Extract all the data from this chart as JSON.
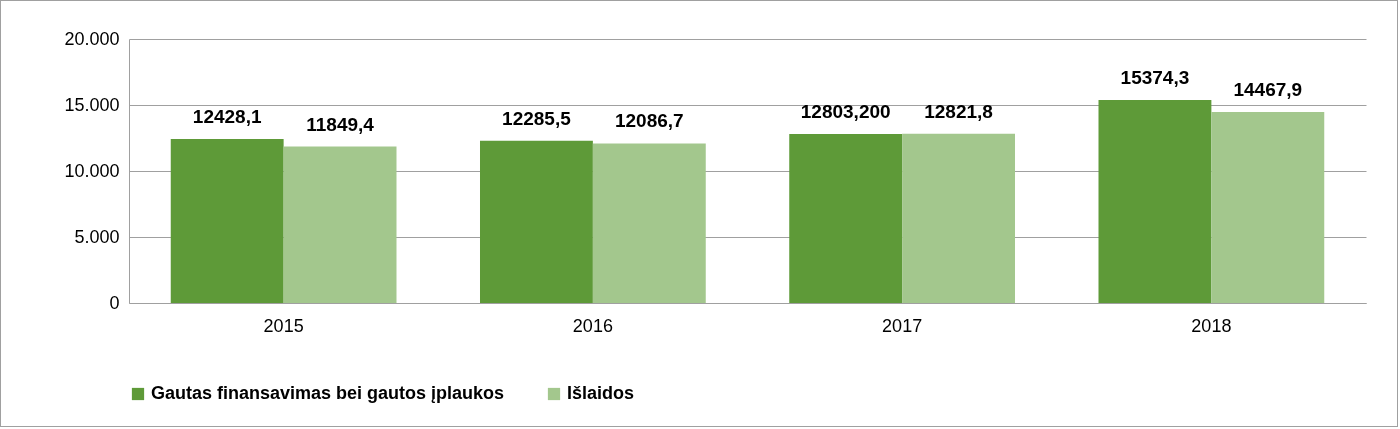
{
  "chart_data": {
    "type": "bar",
    "categories": [
      "2015",
      "2016",
      "2017",
      "2018"
    ],
    "series": [
      {
        "name": "Gautas finansavimas bei gautos įplaukos",
        "color": "#5e9a38",
        "values": [
          12428.1,
          12285.5,
          12803.2,
          15374.3
        ],
        "value_labels": [
          "12428,1",
          "12285,5",
          "12803,200",
          "15374,3"
        ]
      },
      {
        "name": "Išlaidos",
        "color": "#a3c78d",
        "values": [
          11849.4,
          12086.7,
          12821.8,
          14467.9
        ],
        "value_labels": [
          "11849,4",
          "12086,7",
          "12821,8",
          "14467,9"
        ]
      }
    ],
    "ylim": [
      0,
      20000
    ],
    "yticks": [
      0,
      {
        "value": 5000,
        "label": "5.000"
      },
      {
        "value": 10000,
        "label": "10.000"
      },
      {
        "value": 15000,
        "label": "15.000"
      },
      {
        "value": 20000,
        "label": "20.000"
      }
    ],
    "grid": "y",
    "legend": "bottom"
  }
}
